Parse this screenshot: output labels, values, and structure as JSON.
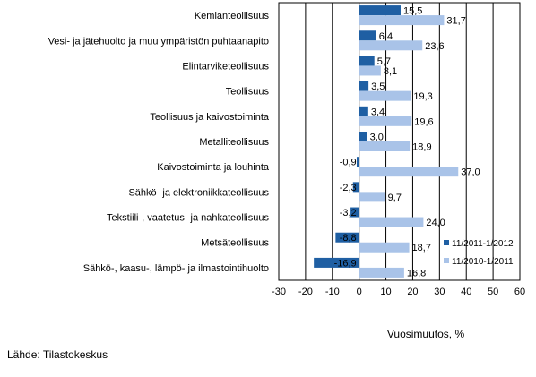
{
  "chart_data": {
    "type": "bar",
    "orientation": "horizontal",
    "categories": [
      "Kemianteollisuus",
      "Vesi- ja jätehuolto ja muu ympäristön puhtaanapito",
      "Elintarviketeollisuus",
      "Teollisuus",
      "Teollisuus ja kaivostoiminta",
      "Metalliteollisuus",
      "Kaivostoiminta ja louhinta",
      "Sähkö- ja elektroniikkateollisuus",
      "Tekstiili-, vaatetus- ja nahkateollisuus",
      "Metsäteollisuus",
      "Sähkö-, kaasu-, lämpö- ja ilmastointihuolto"
    ],
    "series": [
      {
        "name": "11/2011-1/2012",
        "color": "#1f5fa3",
        "values": [
          15.5,
          6.4,
          5.7,
          3.5,
          3.4,
          3.0,
          -0.9,
          -2.3,
          -3.2,
          -8.8,
          -16.9
        ],
        "labels": [
          "15,5",
          "6,4",
          "5,7",
          "3,5",
          "3,4",
          "3,0",
          "-0,9",
          "-2,3",
          "-3,2",
          "-8,8",
          "-16,9"
        ]
      },
      {
        "name": "11/2010-1/2011",
        "color": "#a9c3e8",
        "values": [
          31.7,
          23.6,
          8.1,
          19.3,
          19.6,
          18.9,
          37.0,
          9.7,
          24.0,
          18.7,
          16.8
        ],
        "labels": [
          "31,7",
          "23,6",
          "8,1",
          "19,3",
          "19,6",
          "18,9",
          "37,0",
          "9,7",
          "24,0",
          "18,7",
          "16,8"
        ]
      }
    ],
    "xlim": [
      -30,
      60
    ],
    "xticks": [
      -30,
      -20,
      -10,
      0,
      10,
      20,
      30,
      40,
      50,
      60
    ],
    "xlabel": "Vuosimuutos, %",
    "grid": true,
    "legend_position": "bottom-right"
  },
  "source": "Lähde: Tilastokeskus"
}
